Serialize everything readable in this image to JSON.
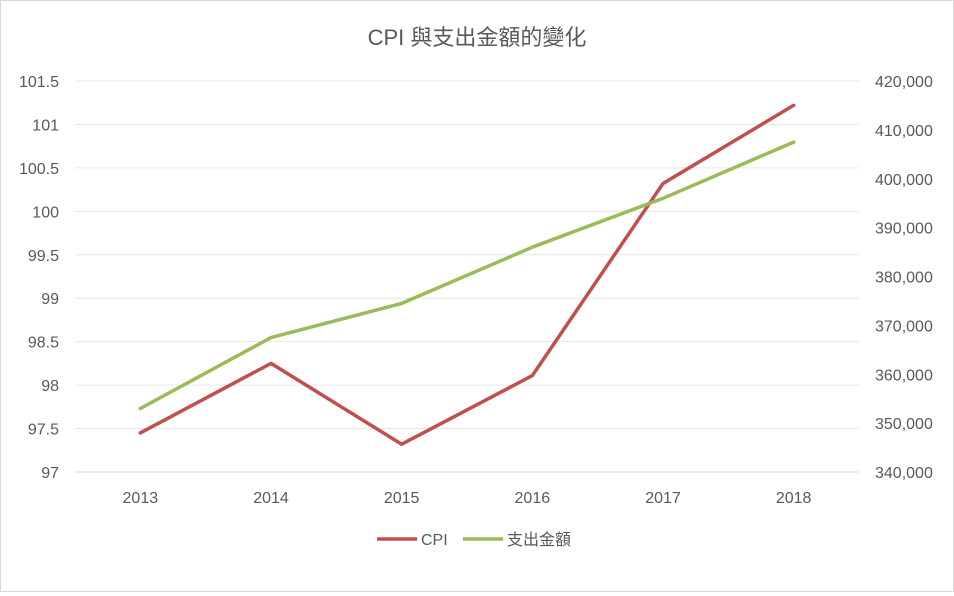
{
  "chart_data": {
    "type": "line",
    "title": "CPI 與支出金額的變化",
    "xlabel": "",
    "ylabel": "",
    "categories": [
      "2013",
      "2014",
      "2015",
      "2016",
      "2017",
      "2018"
    ],
    "y_left": {
      "ylim": [
        97,
        101.5
      ],
      "ticks": [
        97,
        97.5,
        98,
        98.5,
        99,
        99.5,
        100,
        100.5,
        101,
        101.5
      ],
      "tick_labels": [
        "97",
        "97.5",
        "98",
        "98.5",
        "99",
        "99.5",
        "100",
        "100.5",
        "101",
        "101.5"
      ]
    },
    "y_right": {
      "ylim": [
        340000,
        420000
      ],
      "ticks": [
        340000,
        350000,
        360000,
        370000,
        380000,
        390000,
        400000,
        410000,
        420000
      ],
      "tick_labels": [
        "340,000",
        "350,000",
        "360,000",
        "370,000",
        "380,000",
        "390,000",
        "400,000",
        "410,000",
        "420,000"
      ]
    },
    "series": [
      {
        "name": "CPI",
        "axis": "left",
        "color": "#c0504d",
        "values": [
          97.45,
          98.25,
          97.32,
          98.11,
          100.32,
          101.22
        ]
      },
      {
        "name": "支出金額",
        "axis": "right",
        "color": "#9bbb59",
        "values": [
          353000,
          367500,
          374500,
          386000,
          396000,
          407500
        ]
      }
    ],
    "grid": true,
    "legend": "bottom"
  }
}
